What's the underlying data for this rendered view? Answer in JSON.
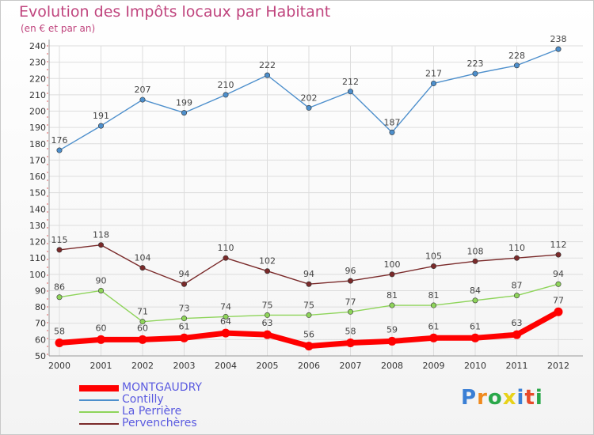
{
  "title": "Evolution des Impôts locaux par Habitant",
  "subtitle": "(en € et par an)",
  "logo": {
    "text": "Proxiti",
    "colors": [
      "#3a7fd5",
      "#f08a1e",
      "#2aa84a",
      "#e8d21a",
      "#3a7fd5",
      "#e84a2a",
      "#2aa84a"
    ]
  },
  "chart_data": {
    "type": "line",
    "title": "Evolution des Impôts locaux par Habitant",
    "subtitle": "(en € et par an)",
    "x": [
      "2000",
      "2001",
      "2002",
      "2003",
      "2004",
      "2005",
      "2006",
      "2007",
      "2008",
      "2009",
      "2010",
      "2011",
      "2012"
    ],
    "ylim": [
      50,
      240
    ],
    "yticks": [
      50,
      60,
      70,
      80,
      90,
      100,
      110,
      120,
      130,
      140,
      150,
      160,
      170,
      180,
      190,
      200,
      210,
      220,
      230,
      240
    ],
    "grid": true,
    "legend": "bottom-left",
    "series": [
      {
        "name": "MONTGAUDRY",
        "color": "#ff0000",
        "values": [
          58,
          60,
          60,
          61,
          64,
          63,
          56,
          58,
          59,
          61,
          61,
          63,
          77
        ],
        "labels": [
          "58",
          "60",
          "60",
          "61",
          "64",
          "63",
          "56",
          "58",
          "59",
          "61",
          "61",
          "63",
          "77"
        ]
      },
      {
        "name": "Contilly",
        "color": "#4d8fcc",
        "values": [
          176,
          191,
          207,
          199,
          210,
          222,
          202,
          212,
          187,
          217,
          223,
          228,
          238
        ],
        "labels": [
          "176",
          "191",
          "207",
          "199",
          "210",
          "222",
          "202",
          "212",
          "187",
          "217",
          "223",
          "228",
          "238"
        ]
      },
      {
        "name": "La Perrière",
        "color": "#8ed45a",
        "values": [
          86,
          90,
          71,
          73,
          74,
          75,
          75,
          77,
          81,
          81,
          84,
          87,
          94
        ],
        "labels": [
          "86",
          "90",
          "71",
          "73",
          "74",
          "75",
          "75",
          "77",
          "81",
          "81",
          "84",
          "87",
          "94"
        ]
      },
      {
        "name": "Pervenchères",
        "color": "#7a2a2a",
        "values": [
          115,
          118,
          104,
          94,
          110,
          102,
          94,
          96,
          100,
          105,
          108,
          110,
          112
        ],
        "labels": [
          "115",
          "118",
          "104",
          "94",
          "110",
          "102",
          "94",
          "96",
          "100",
          "105",
          "108",
          "110",
          "112"
        ]
      }
    ]
  }
}
